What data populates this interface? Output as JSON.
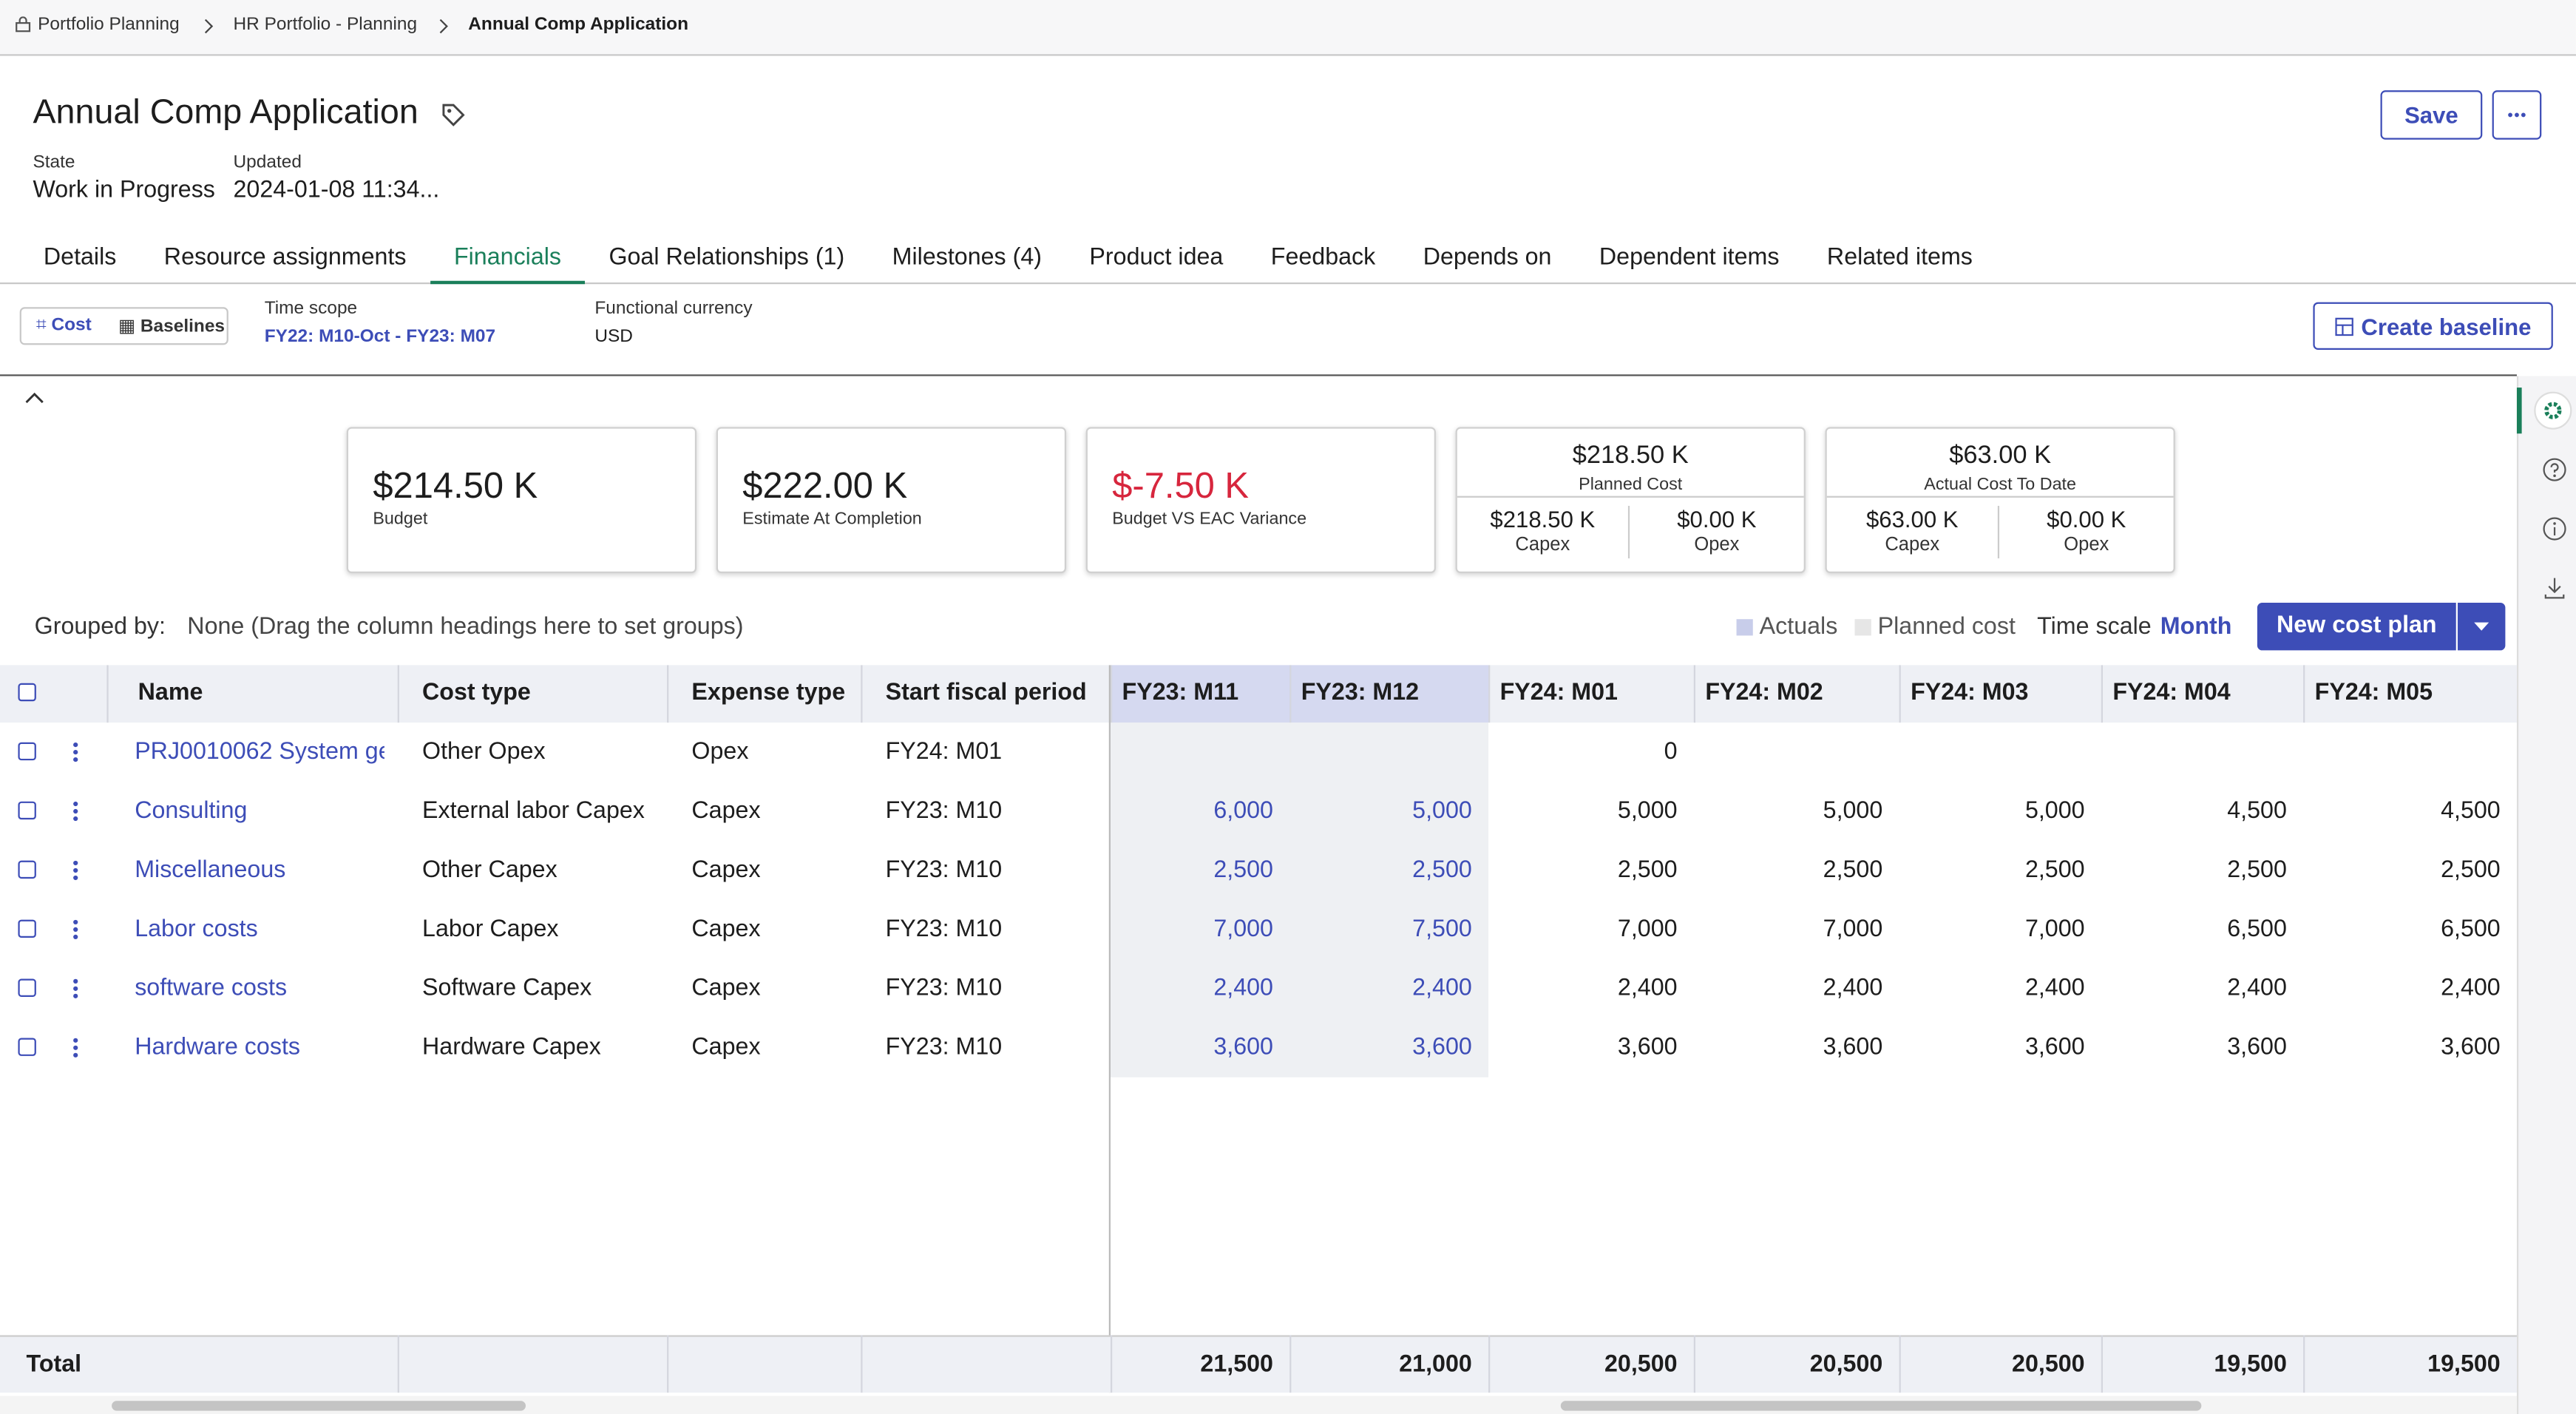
{
  "breadcrumb": [
    "Portfolio Planning",
    "HR Portfolio - Planning",
    "Annual Comp Application"
  ],
  "header": {
    "title": "Annual Comp Application",
    "state_label": "State",
    "state": "Work in Progress",
    "updated_label": "Updated",
    "updated": "2024-01-08 11:34...",
    "save": "Save"
  },
  "tabs": [
    "Details",
    "Resource assignments",
    "Financials",
    "Goal Relationships (1)",
    "Milestones (4)",
    "Product idea",
    "Feedback",
    "Depends on",
    "Dependent items",
    "Related items"
  ],
  "active_tab": 2,
  "toolbar": {
    "cost": "Cost",
    "baselines": "Baselines",
    "time_scope_label": "Time scope",
    "time_scope": "FY22: M10-Oct - FY23: M07",
    "currency_label": "Functional currency",
    "currency": "USD",
    "create_baseline": "Create baseline"
  },
  "kpis": [
    {
      "value": "$214.50 K",
      "label": "Budget"
    },
    {
      "value": "$222.00 K",
      "label": "Estimate At Completion"
    },
    {
      "value": "$-7.50 K",
      "label": "Budget VS EAC Variance"
    }
  ],
  "split_kpis": [
    {
      "value": "$218.50 K",
      "label": "Planned Cost",
      "parts": [
        {
          "value": "$218.50 K",
          "label": "Capex"
        },
        {
          "value": "$0.00 K",
          "label": "Opex"
        }
      ]
    },
    {
      "value": "$63.00 K",
      "label": "Actual Cost To Date",
      "parts": [
        {
          "value": "$63.00 K",
          "label": "Capex"
        },
        {
          "value": "$0.00 K",
          "label": "Opex"
        }
      ]
    }
  ],
  "grid": {
    "grouped_by_label": "Grouped by:",
    "grouped_by": "None (Drag the column headings here to set groups)",
    "legend": [
      "Actuals",
      "Planned cost"
    ],
    "time_scale_label": "Time scale",
    "time_scale": "Month",
    "new_cost_plan": "New cost plan",
    "columns": [
      "Name",
      "Cost type",
      "Expense type",
      "Start fiscal period",
      "FY23: M11",
      "FY23: M12",
      "FY24: M01",
      "FY24: M02",
      "FY24: M03",
      "FY24: M04",
      "FY24: M05"
    ],
    "rows": [
      [
        "PRJ0010062 System ge",
        "Other Opex",
        "Opex",
        "FY24: M01",
        null,
        null,
        "0",
        null,
        null,
        null,
        null
      ],
      [
        "Consulting",
        "External labor Capex",
        "Capex",
        "FY23: M10",
        "6,000",
        "5,000",
        "5,000",
        "5,000",
        "5,000",
        "4,500",
        "4,500"
      ],
      [
        "Miscellaneous",
        "Other Capex",
        "Capex",
        "FY23: M10",
        "2,500",
        "2,500",
        "2,500",
        "2,500",
        "2,500",
        "2,500",
        "2,500"
      ],
      [
        "Labor costs",
        "Labor Capex",
        "Capex",
        "FY23: M10",
        "7,000",
        "7,500",
        "7,000",
        "7,000",
        "7,000",
        "6,500",
        "6,500"
      ],
      [
        "software costs",
        "Software Capex",
        "Capex",
        "FY23: M10",
        "2,400",
        "2,400",
        "2,400",
        "2,400",
        "2,400",
        "2,400",
        "2,400"
      ],
      [
        "Hardware costs",
        "Hardware Capex",
        "Capex",
        "FY23: M10",
        "3,600",
        "3,600",
        "3,600",
        "3,600",
        "3,600",
        "3,600",
        "3,600"
      ]
    ],
    "total_label": "Total",
    "totals": [
      "21,500",
      "21,000",
      "20,500",
      "20,500",
      "20,500",
      "19,500",
      "19,500"
    ]
  }
}
